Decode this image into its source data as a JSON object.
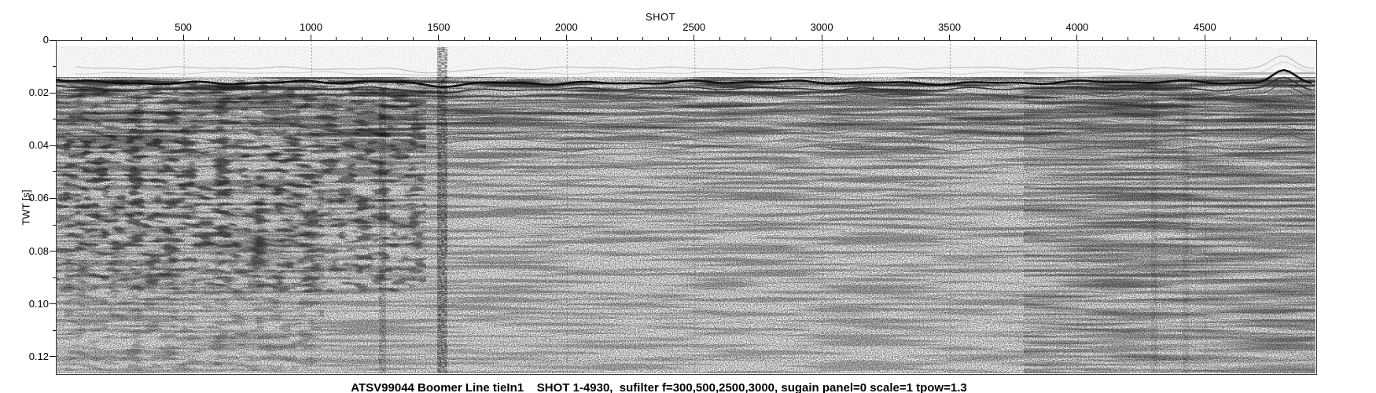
{
  "page": {
    "background": "#ffffff",
    "kind": "seismic section plot (Seismic Unix style)"
  },
  "x_axis_title": "SHOT",
  "y_axis_title": "TWT [s]",
  "caption": "ATSV99044 Boomer Line tieIn1    SHOT 1-4930,  sufilter f=300,500,2500,3000, sugain panel=0 scale=1 tpow=1.3",
  "chart_data": {
    "type": "heatmap",
    "subtype": "seismic-reflection-wiggle-section",
    "title": "SHOT",
    "xlabel": "SHOT",
    "ylabel": "TWT [s]",
    "x_axis": {
      "label": "SHOT",
      "position": "top",
      "min": 1,
      "max": 4930,
      "major_tick_values": [
        500,
        1000,
        1500,
        2000,
        2500,
        3000,
        3500,
        4000,
        4500
      ],
      "major_tick_labels": [
        "500",
        "1000",
        "1500",
        "2000",
        "2500",
        "3000",
        "3500",
        "4000",
        "4500"
      ],
      "minor_tick_step": 100
    },
    "y_axis": {
      "label": "TWT [s]",
      "position": "left",
      "direction": "down",
      "min": 0,
      "max": 0.126,
      "major_tick_values": [
        0,
        0.02,
        0.04,
        0.06,
        0.08,
        0.1,
        0.12
      ],
      "major_tick_labels": [
        "0",
        "0.02",
        "0.04",
        "0.06",
        "0.08",
        "0.10",
        "0.12"
      ],
      "minor_tick_step": 0.01
    },
    "grid": {
      "style": "dotted",
      "vertical_at_major_x": true,
      "horizontal_at_major_y": true
    },
    "annotations": {
      "line_name": "ATSV99044 Boomer Line tieIn1",
      "shot_range": "SHOT 1-4930",
      "processing": "sufilter f=300,500,2500,3000, sugain panel=0 scale=1 tpow=1.3"
    },
    "features": {
      "seafloor_reflector_twt_s": 0.016,
      "upper_faint_arrival_twt_s": 0.011,
      "noisy_vertical_stripe_near_shot": 1500,
      "secondary_noisy_stripe_near_shot": 1280,
      "seafloor_hump_near_shot": 4790,
      "dark_chaotic_zone": "shots 100-1200, 0.02-0.08 s",
      "description": "grayscale variable-area seismic section: white water column above a strong dark undulating seafloor reflector near 0.016 s, stacked wiggly sub-bottom reflectors and salt-and-pepper noise below, denser dark chevron patches on the left third, noisy vertical trace stripe under shot 1500, upward seafloor hump near the right edge"
    }
  },
  "colors": {
    "background": "#ffffff",
    "frame": "#3a3a3a",
    "tick_labels": "#000000",
    "grid_dots": "#555555",
    "data_palette": "grayscale"
  }
}
